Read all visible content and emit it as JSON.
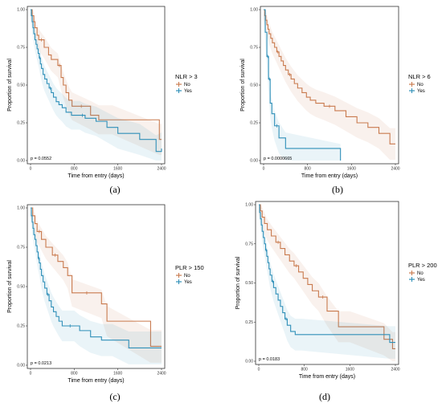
{
  "chart_data": [
    {
      "type": "line",
      "panel": "a",
      "caption": "(a)",
      "xlabel": "Time from entry (days)",
      "ylabel": "Proportion of survival",
      "xlim": [
        0,
        2400
      ],
      "ylim": [
        0,
        1
      ],
      "x_ticks": [
        "0",
        "800",
        "1600",
        "2400"
      ],
      "y_ticks": [
        "0.00",
        "0.25",
        "0.50",
        "0.75",
        "1.00"
      ],
      "legend_title": "NLR > 3",
      "p_value": "p = 0.0552",
      "series": [
        {
          "name": "No",
          "color": "#c97a4e",
          "x": [
            0,
            30,
            60,
            80,
            120,
            150,
            250,
            330,
            380,
            500,
            560,
            600,
            650,
            700,
            760,
            1100,
            1250,
            1500,
            2360,
            2400
          ],
          "y": [
            1.0,
            0.96,
            0.92,
            0.88,
            0.83,
            0.8,
            0.75,
            0.7,
            0.67,
            0.63,
            0.55,
            0.5,
            0.45,
            0.4,
            0.36,
            0.3,
            0.27,
            0.27,
            0.14,
            0.14
          ]
        },
        {
          "name": "Yes",
          "color": "#2f8fb8",
          "x": [
            0,
            15,
            30,
            45,
            60,
            80,
            100,
            120,
            140,
            160,
            180,
            200,
            230,
            260,
            300,
            340,
            380,
            420,
            470,
            520,
            580,
            650,
            750,
            900,
            1000,
            1200,
            1400,
            1600,
            2000,
            2300,
            2400
          ],
          "y": [
            1.0,
            0.96,
            0.92,
            0.88,
            0.84,
            0.8,
            0.77,
            0.74,
            0.71,
            0.68,
            0.64,
            0.61,
            0.57,
            0.54,
            0.51,
            0.48,
            0.45,
            0.42,
            0.39,
            0.37,
            0.35,
            0.32,
            0.3,
            0.3,
            0.28,
            0.26,
            0.22,
            0.18,
            0.14,
            0.06,
            0.08
          ]
        }
      ]
    },
    {
      "type": "line",
      "panel": "b",
      "caption": "(b)",
      "xlabel": "Time from entry (days)",
      "ylabel": "Proportion of survival",
      "xlim": [
        0,
        2400
      ],
      "ylim": [
        0,
        1
      ],
      "x_ticks": [
        "0",
        "800",
        "1600",
        "2400"
      ],
      "y_ticks": [
        "0.00",
        "0.25",
        "0.50",
        "0.75",
        "1.00"
      ],
      "legend_title": "NLR > 6",
      "p_value": "p = 0.0000665",
      "series": [
        {
          "name": "No",
          "color": "#c97a4e",
          "x": [
            0,
            20,
            40,
            60,
            80,
            100,
            130,
            160,
            200,
            240,
            280,
            320,
            360,
            400,
            450,
            500,
            560,
            620,
            700,
            780,
            850,
            950,
            1100,
            1300,
            1500,
            1700,
            1900,
            2100,
            2300,
            2400
          ],
          "y": [
            1.0,
            0.96,
            0.93,
            0.9,
            0.87,
            0.84,
            0.81,
            0.78,
            0.75,
            0.72,
            0.69,
            0.66,
            0.63,
            0.6,
            0.57,
            0.54,
            0.51,
            0.48,
            0.45,
            0.42,
            0.4,
            0.38,
            0.36,
            0.33,
            0.29,
            0.25,
            0.22,
            0.18,
            0.11,
            0.11
          ]
        },
        {
          "name": "Yes",
          "color": "#2f8fb8",
          "x": [
            0,
            30,
            60,
            90,
            120,
            150,
            200,
            280,
            400,
            1400
          ],
          "y": [
            1.0,
            0.85,
            0.69,
            0.54,
            0.38,
            0.31,
            0.23,
            0.15,
            0.08,
            0.0
          ]
        }
      ]
    },
    {
      "type": "line",
      "panel": "c",
      "caption": "(c)",
      "xlabel": "Time from entry (days)",
      "ylabel": "Proportion of survival",
      "xlim": [
        0,
        2400
      ],
      "ylim": [
        0,
        1
      ],
      "x_ticks": [
        "0",
        "800",
        "1600",
        "2400"
      ],
      "y_ticks": [
        "0.00",
        "0.25",
        "0.50",
        "0.75",
        "1.00"
      ],
      "legend_title": "PLR > 150",
      "p_value": "p = 0.0213",
      "series": [
        {
          "name": "No",
          "color": "#c97a4e",
          "x": [
            0,
            40,
            80,
            120,
            200,
            280,
            400,
            500,
            600,
            680,
            760,
            1300,
            1400,
            2200,
            2400
          ],
          "y": [
            1.0,
            0.95,
            0.9,
            0.85,
            0.8,
            0.75,
            0.7,
            0.66,
            0.62,
            0.57,
            0.46,
            0.39,
            0.28,
            0.12,
            0.12
          ]
        },
        {
          "name": "Yes",
          "color": "#2f8fb8",
          "x": [
            0,
            15,
            30,
            45,
            60,
            80,
            100,
            120,
            140,
            160,
            180,
            200,
            230,
            260,
            300,
            340,
            380,
            420,
            470,
            520,
            580,
            650,
            800,
            900,
            1100,
            1300,
            1500,
            1800,
            2400
          ],
          "y": [
            1.0,
            0.95,
            0.91,
            0.87,
            0.83,
            0.8,
            0.76,
            0.72,
            0.68,
            0.65,
            0.61,
            0.57,
            0.53,
            0.49,
            0.45,
            0.41,
            0.37,
            0.34,
            0.31,
            0.28,
            0.25,
            0.25,
            0.25,
            0.22,
            0.18,
            0.16,
            0.16,
            0.11,
            0.11
          ]
        }
      ]
    },
    {
      "type": "line",
      "panel": "d",
      "caption": "(d)",
      "xlabel": "Time from entry (days)",
      "ylabel": "Proportion of survival",
      "xlim": [
        0,
        2400
      ],
      "ylim": [
        0,
        1
      ],
      "x_ticks": [
        "0",
        "800",
        "1600",
        "2400"
      ],
      "y_ticks": [
        "0.00",
        "0.25",
        "0.50",
        "0.75",
        "1.00"
      ],
      "legend_title": "PLR > 200",
      "p_value": "p = 0.0183",
      "series": [
        {
          "name": "No",
          "color": "#c97a4e",
          "x": [
            0,
            30,
            60,
            100,
            150,
            220,
            300,
            380,
            460,
            540,
            620,
            700,
            780,
            860,
            940,
            1050,
            1200,
            1400,
            1600,
            2200,
            2350,
            2400
          ],
          "y": [
            1.0,
            0.96,
            0.92,
            0.88,
            0.84,
            0.8,
            0.76,
            0.72,
            0.68,
            0.64,
            0.61,
            0.57,
            0.53,
            0.49,
            0.45,
            0.41,
            0.32,
            0.22,
            0.22,
            0.14,
            0.08,
            0.08
          ]
        },
        {
          "name": "Yes",
          "color": "#2f8fb8",
          "x": [
            0,
            15,
            30,
            45,
            60,
            80,
            100,
            120,
            140,
            160,
            180,
            200,
            230,
            260,
            300,
            340,
            380,
            420,
            460,
            500,
            560,
            640,
            750,
            2300,
            2400
          ],
          "y": [
            1.0,
            0.95,
            0.91,
            0.87,
            0.83,
            0.79,
            0.75,
            0.71,
            0.67,
            0.63,
            0.59,
            0.55,
            0.51,
            0.47,
            0.43,
            0.39,
            0.35,
            0.31,
            0.27,
            0.23,
            0.19,
            0.17,
            0.17,
            0.12,
            0.12
          ]
        }
      ]
    }
  ]
}
